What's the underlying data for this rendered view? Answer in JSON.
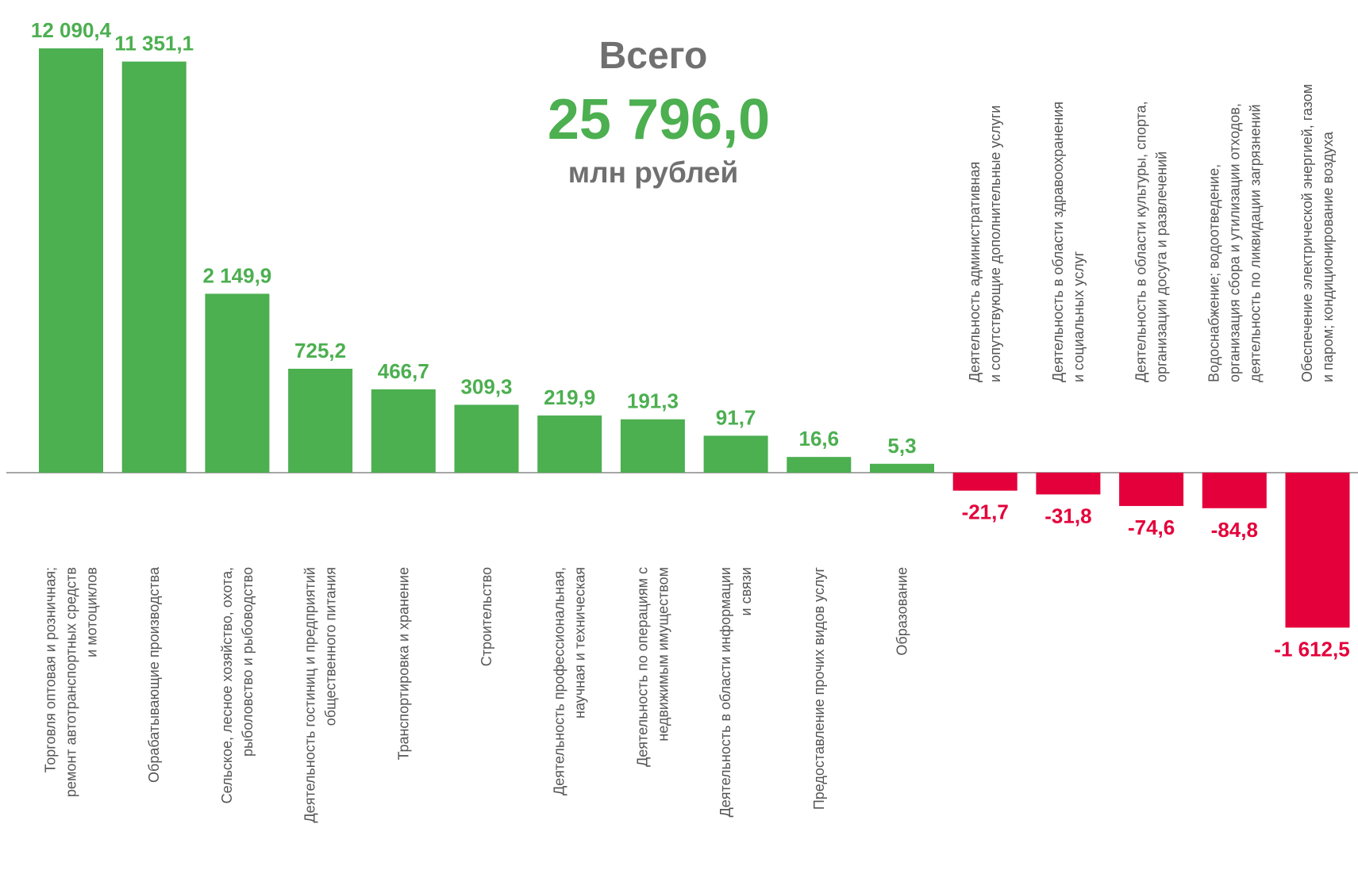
{
  "chart_data": {
    "type": "bar",
    "total_title": "Всего",
    "total": {
      "value": 25796.0,
      "label": "25 796,0"
    },
    "unit": "млн рублей",
    "categories": [
      [
        "Торговля оптовая и розничная;",
        "ремонт автотранспортных средств",
        "и мотоциклов"
      ],
      [
        "Обрабатывающие производства"
      ],
      [
        "Сельское, лесное хозяйство, охота,",
        "рыболовство и рыбоводство"
      ],
      [
        "Деятельность гостиниц и предприятий",
        "общественного питания"
      ],
      [
        "Транспортировка и хранение"
      ],
      [
        "Строительство"
      ],
      [
        "Деятельность профессиональная,",
        "научная и техническая"
      ],
      [
        "Деятельность по операциям с",
        "недвижимым имуществом"
      ],
      [
        "Деятельность в области информации",
        "и связи"
      ],
      [
        "Предоставление прочих видов услуг"
      ],
      [
        "Образование"
      ],
      [
        "Деятельность административная",
        "и сопутствующие дополнительные услуги"
      ],
      [
        "Деятельность в области здравоохранения",
        "и социальных услуг"
      ],
      [
        "Деятельность в области культуры, спорта,",
        "организации досуга и развлечений"
      ],
      [
        "Водоснабжение; водоотведение,",
        "организация сбора и утилизации отходов,",
        "деятельность по ликвидации загрязнений"
      ],
      [
        "Обеспечение электрической энергией, газом",
        "и паром; кондиционирование  воздуха"
      ]
    ],
    "values": [
      12090.4,
      11351.1,
      2149.9,
      725.2,
      466.7,
      309.3,
      219.9,
      191.3,
      91.7,
      16.6,
      5.3,
      -21.7,
      -31.8,
      -74.6,
      -84.8,
      -1612.5
    ],
    "value_labels": [
      "12 090,4",
      "11 351,1",
      "2 149,9",
      "725,2",
      "466,7",
      "309,3",
      "219,9",
      "191,3",
      "91,7",
      "16,6",
      "5,3",
      "-21,7",
      "-31,8",
      "-74,6",
      "-84,8",
      "-1 612,5"
    ],
    "colors": {
      "positive": "#4caf50",
      "negative": "#e4003a"
    }
  }
}
